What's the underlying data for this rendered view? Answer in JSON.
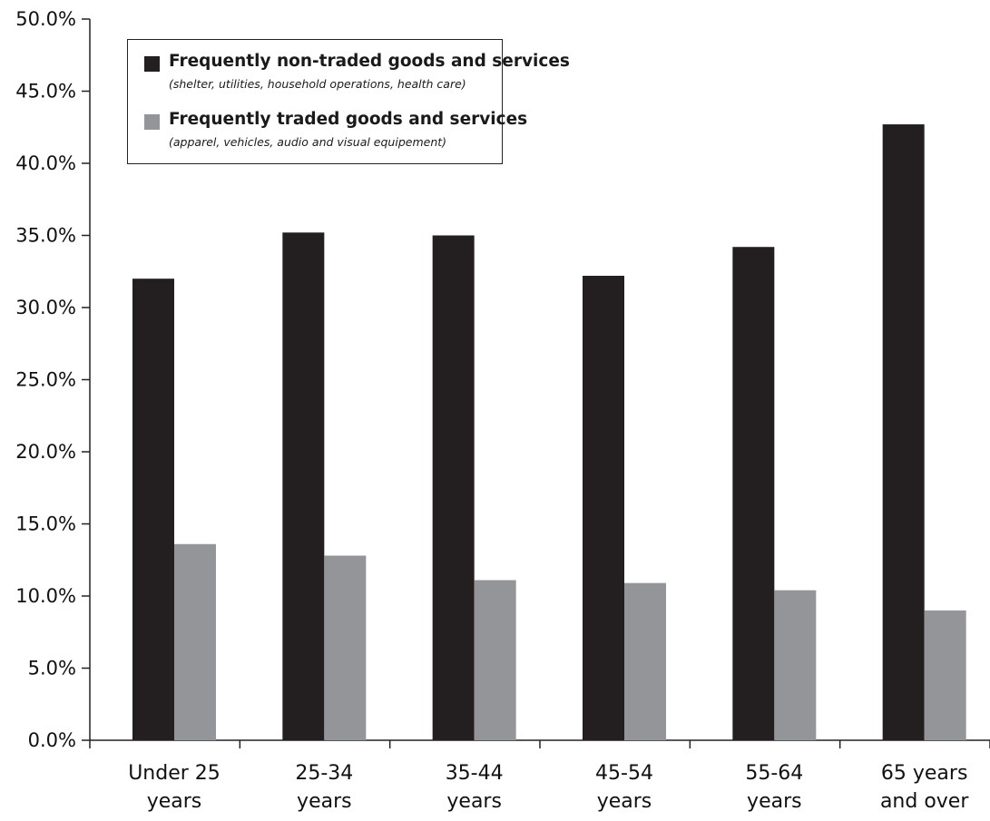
{
  "chart_data": {
    "type": "bar",
    "categories": [
      [
        "Under 25",
        "years"
      ],
      [
        "25-34",
        "years"
      ],
      [
        "35-44",
        "years"
      ],
      [
        "45-54",
        "years"
      ],
      [
        "55-64",
        "years"
      ],
      [
        "65 years",
        "and over"
      ]
    ],
    "series": [
      {
        "name": "Frequently non-traded goods and services",
        "description": "(shelter, utilities, household operations, health care)",
        "color": "#231f20",
        "values": [
          32.0,
          35.2,
          35.0,
          32.2,
          34.2,
          42.7
        ]
      },
      {
        "name": "Frequently traded goods and services",
        "description": "(apparel, vehicles, audio and visual equipement)",
        "color": "#939598",
        "values": [
          13.6,
          12.8,
          11.1,
          10.9,
          10.4,
          9.0
        ]
      }
    ],
    "ylim": [
      0,
      50
    ],
    "yticks": [
      "0.0%",
      "5.0%",
      "10.0%",
      "15.0%",
      "20.0%",
      "25.0%",
      "30.0%",
      "35.0%",
      "40.0%",
      "45.0%",
      "50.0%"
    ],
    "title": "",
    "xlabel": "",
    "ylabel": "",
    "grid": false,
    "legend_position": "top-left"
  }
}
